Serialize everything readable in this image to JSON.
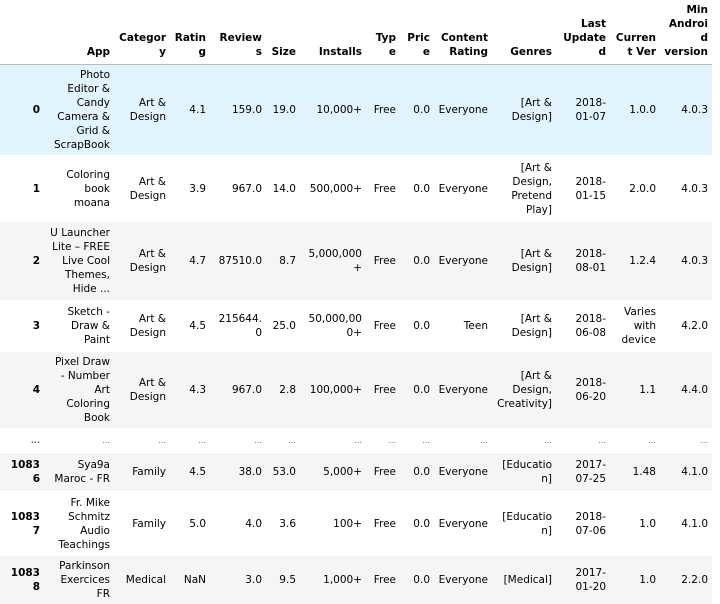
{
  "columns": [
    "",
    "App",
    "Category",
    "Rating",
    "Reviews",
    "Size",
    "Installs",
    "Type",
    "Price",
    "Content Rating",
    "Genres",
    "Last Updated",
    "Current Ver",
    "Min Android version"
  ],
  "rows": [
    {
      "index": "0",
      "cells": [
        "Photo Editor & Candy Camera & Grid & ScrapBook",
        "Art & Design",
        "4.1",
        "159.0",
        "19.0",
        "10,000+",
        "Free",
        "0.0",
        "Everyone",
        "[Art & Design]",
        "2018-01-07",
        "1.0.0",
        "4.0.3"
      ]
    },
    {
      "index": "1",
      "cells": [
        "Coloring book moana",
        "Art & Design",
        "3.9",
        "967.0",
        "14.0",
        "500,000+",
        "Free",
        "0.0",
        "Everyone",
        "[Art & Design, Pretend Play]",
        "2018-01-15",
        "2.0.0",
        "4.0.3"
      ]
    },
    {
      "index": "2",
      "cells": [
        "U Launcher Lite – FREE Live Cool Themes, Hide ...",
        "Art & Design",
        "4.7",
        "87510.0",
        "8.7",
        "5,000,000+",
        "Free",
        "0.0",
        "Everyone",
        "[Art & Design]",
        "2018-08-01",
        "1.2.4",
        "4.0.3"
      ]
    },
    {
      "index": "3",
      "cells": [
        "Sketch - Draw & Paint",
        "Art & Design",
        "4.5",
        "215644.0",
        "25.0",
        "50,000,000+",
        "Free",
        "0.0",
        "Teen",
        "[Art & Design]",
        "2018-06-08",
        "Varies with device",
        "4.2.0"
      ]
    },
    {
      "index": "4",
      "cells": [
        "Pixel Draw - Number Art Coloring Book",
        "Art & Design",
        "4.3",
        "967.0",
        "2.8",
        "100,000+",
        "Free",
        "0.0",
        "Everyone",
        "[Art & Design, Creativity]",
        "2018-06-20",
        "1.1",
        "4.4.0"
      ]
    },
    {
      "index": "...",
      "cells": [
        "...",
        "...",
        "...",
        "...",
        "...",
        "...",
        "...",
        "...",
        "...",
        "...",
        "...",
        "...",
        "..."
      ]
    },
    {
      "index": "10836",
      "cells": [
        "Sya9a Maroc - FR",
        "Family",
        "4.5",
        "38.0",
        "53.0",
        "5,000+",
        "Free",
        "0.0",
        "Everyone",
        "[Education]",
        "2017-07-25",
        "1.48",
        "4.1.0"
      ]
    },
    {
      "index": "10837",
      "cells": [
        "Fr. Mike Schmitz Audio Teachings",
        "Family",
        "5.0",
        "4.0",
        "3.6",
        "100+",
        "Free",
        "0.0",
        "Everyone",
        "[Education]",
        "2018-07-06",
        "1.0",
        "4.1.0"
      ]
    },
    {
      "index": "10838",
      "cells": [
        "Parkinson Exercices FR",
        "Medical",
        "NaN",
        "3.0",
        "9.5",
        "1,000+",
        "Free",
        "0.0",
        "Everyone",
        "[Medical]",
        "2017-01-20",
        "1.0",
        "2.2.0"
      ]
    }
  ],
  "hover_color": "#e1f3fc"
}
